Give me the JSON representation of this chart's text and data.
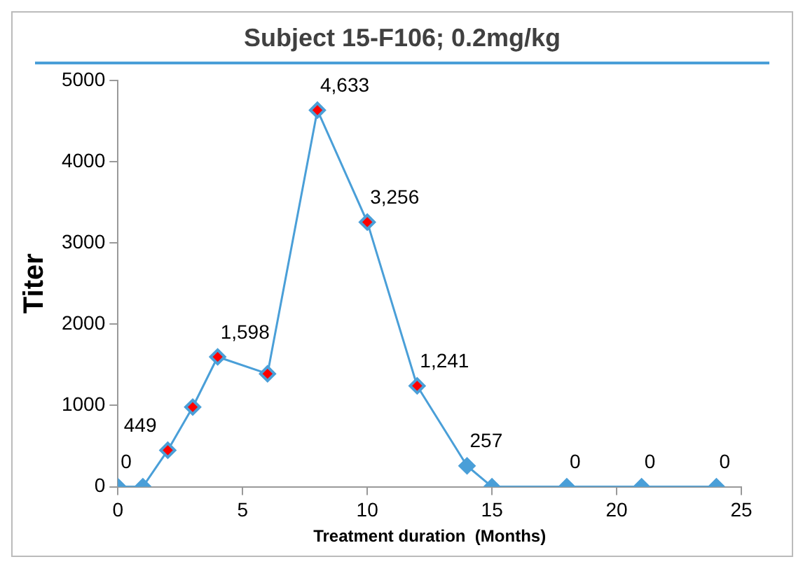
{
  "chart_data": {
    "type": "line",
    "title": "Subject 15-F106; 0.2mg/kg",
    "xlabel": "Treatment duration  (Months)",
    "ylabel": "Titer",
    "x": [
      0,
      1,
      2,
      3,
      4,
      6,
      8,
      10,
      12,
      14,
      15,
      18,
      21,
      24
    ],
    "series": [
      {
        "color": "#4a9fd8",
        "colors": [
          "#4a9fd8",
          "#4a9fd8",
          "#ff0000",
          "#ff0000",
          "#ff0000",
          "#ff0000",
          "#ff0000",
          "#ff0000",
          "#ff0000",
          "#4a9fd8",
          "#4a9fd8",
          "#4a9fd8",
          "#4a9fd8",
          "#4a9fd8"
        ],
        "values": [
          0,
          0,
          449,
          980,
          1598,
          1390,
          4633,
          3256,
          1241,
          257,
          0,
          0,
          0,
          0
        ],
        "value_labels": [
          null,
          "0",
          "449",
          null,
          "1,598",
          null,
          "4,633",
          "3,256",
          "1,241",
          "257",
          null,
          "0",
          "0",
          "0"
        ]
      }
    ],
    "xlim": [
      0,
      25
    ],
    "xticks": [
      0,
      5,
      10,
      15,
      20,
      25
    ],
    "ylim": [
      0,
      5000
    ],
    "yticks": [
      0,
      1000,
      2000,
      3000,
      4000,
      5000
    ],
    "grid": false,
    "legend": false,
    "marker": "diamond",
    "line_style": "solid"
  }
}
